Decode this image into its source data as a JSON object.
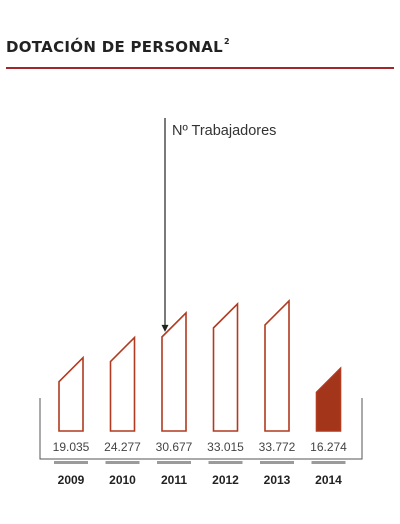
{
  "header": {
    "title": "DOTACIÓN DE PERSONAL",
    "footnote_mark": "2"
  },
  "colors": {
    "accent": "#a3262a",
    "bar_outline": "#b13a20",
    "bar_fill_highlight": "#a3351a",
    "underline_bar": "#9b9b9b",
    "bracket": "#555555"
  },
  "chart_data": {
    "type": "bar",
    "title": "",
    "series": [
      {
        "name": "Nº Trabajadores",
        "values": [
          19035,
          24277,
          30677,
          33015,
          33772,
          16274
        ]
      }
    ],
    "categories": [
      "2009",
      "2010",
      "2011",
      "2012",
      "2013",
      "2014"
    ],
    "value_labels": [
      "19.035",
      "24.277",
      "30.677",
      "33.015",
      "33.772",
      "16.274"
    ],
    "highlighted_category": "2014",
    "annotation": {
      "text": "Nº Trabajadores",
      "points_to": "2011"
    },
    "ylim": [
      0,
      40000
    ],
    "grid": false
  }
}
